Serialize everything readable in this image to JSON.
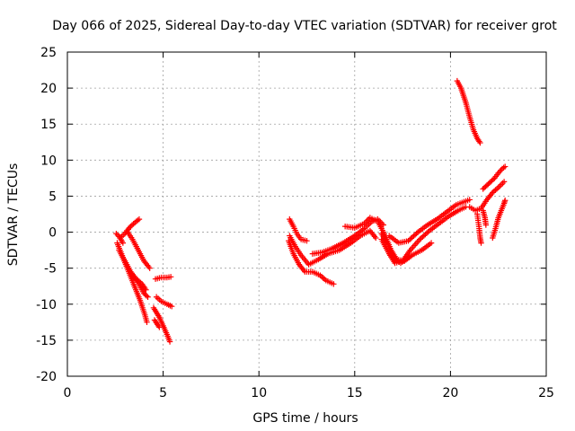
{
  "chart_data": {
    "type": "scatter",
    "title": "Day 066 of 2025, Sidereal Day-to-day VTEC variation (SDTVAR) for receiver grot",
    "xlabel": "GPS time / hours",
    "ylabel": "SDTVAR / TECUs",
    "xlim": [
      0,
      25
    ],
    "ylim": [
      -20,
      25
    ],
    "x_ticks": [
      0,
      5,
      10,
      15,
      20,
      25
    ],
    "y_ticks": [
      -20,
      -15,
      -10,
      -5,
      0,
      5,
      10,
      15,
      20,
      25
    ],
    "x_tick_labels": [
      "0",
      "5",
      "10",
      "15",
      "20",
      "25"
    ],
    "y_tick_labels": [
      "-20",
      "-15",
      "-10",
      "-5",
      "0",
      "5",
      "10",
      "15",
      "20",
      "25"
    ],
    "grid": true,
    "marker": "plus",
    "color": "#ff0000",
    "tracks": [
      [
        [
          2.55,
          -0.2
        ],
        [
          2.7,
          -0.6
        ],
        [
          2.9,
          -1.5
        ]
      ],
      [
        [
          2.6,
          -1.5
        ],
        [
          2.9,
          -3.5
        ],
        [
          3.2,
          -5.5
        ],
        [
          3.5,
          -7.5
        ],
        [
          3.8,
          -9.5
        ],
        [
          4.05,
          -11.5
        ],
        [
          4.15,
          -12.5
        ]
      ],
      [
        [
          2.7,
          -2.5
        ],
        [
          3.0,
          -4.0
        ],
        [
          3.3,
          -5.5
        ],
        [
          3.6,
          -6.5
        ],
        [
          3.9,
          -7.2
        ],
        [
          4.1,
          -8.0
        ]
      ],
      [
        [
          2.8,
          -3.0
        ],
        [
          3.1,
          -4.5
        ],
        [
          3.4,
          -6.0
        ],
        [
          3.7,
          -7.0
        ],
        [
          4.0,
          -8.5
        ],
        [
          4.2,
          -9.0
        ]
      ],
      [
        [
          2.75,
          -0.8
        ],
        [
          3.0,
          -0.2
        ],
        [
          3.3,
          0.8
        ],
        [
          3.6,
          1.5
        ],
        [
          3.75,
          1.8
        ]
      ],
      [
        [
          3.1,
          0.2
        ],
        [
          3.4,
          -1.0
        ],
        [
          3.7,
          -2.5
        ],
        [
          4.0,
          -4.0
        ],
        [
          4.3,
          -5.0
        ]
      ],
      [
        [
          4.6,
          -6.5
        ],
        [
          4.9,
          -6.3
        ],
        [
          5.2,
          -6.3
        ],
        [
          5.4,
          -6.2
        ]
      ],
      [
        [
          4.5,
          -10.5
        ],
        [
          4.8,
          -11.8
        ],
        [
          5.0,
          -13.0
        ],
        [
          5.2,
          -14.2
        ],
        [
          5.35,
          -15.2
        ]
      ],
      [
        [
          4.65,
          -9.0
        ],
        [
          4.9,
          -9.6
        ],
        [
          5.2,
          -10.0
        ],
        [
          5.45,
          -10.3
        ]
      ],
      [
        [
          4.55,
          -12.2
        ],
        [
          4.7,
          -12.8
        ],
        [
          4.8,
          -13.2
        ]
      ],
      [
        [
          11.6,
          1.8
        ],
        [
          11.8,
          0.8
        ],
        [
          12.0,
          -0.3
        ],
        [
          12.2,
          -1.0
        ],
        [
          12.5,
          -1.2
        ]
      ],
      [
        [
          11.55,
          -1.2
        ],
        [
          11.8,
          -3.0
        ],
        [
          12.1,
          -4.5
        ],
        [
          12.4,
          -5.5
        ],
        [
          12.8,
          -5.5
        ],
        [
          13.2,
          -6.0
        ],
        [
          13.5,
          -6.7
        ],
        [
          13.9,
          -7.2
        ]
      ],
      [
        [
          11.6,
          -0.5
        ],
        [
          11.9,
          -2.0
        ],
        [
          12.2,
          -3.2
        ],
        [
          12.6,
          -4.5
        ],
        [
          13.1,
          -3.8
        ],
        [
          13.6,
          -3.0
        ],
        [
          14.2,
          -2.5
        ],
        [
          14.8,
          -1.5
        ],
        [
          15.3,
          -0.5
        ],
        [
          15.8,
          0.2
        ],
        [
          16.1,
          -0.8
        ]
      ],
      [
        [
          12.8,
          -3.0
        ],
        [
          13.3,
          -2.8
        ],
        [
          13.8,
          -2.3
        ],
        [
          14.4,
          -1.5
        ],
        [
          15.0,
          -0.5
        ],
        [
          15.5,
          0.5
        ],
        [
          15.9,
          1.5
        ],
        [
          16.2,
          1.8
        ],
        [
          16.5,
          1.0
        ]
      ],
      [
        [
          14.5,
          0.8
        ],
        [
          15.0,
          0.6
        ],
        [
          15.5,
          1.2
        ],
        [
          15.8,
          2.0
        ],
        [
          16.2,
          1.5
        ],
        [
          16.6,
          -0.5
        ],
        [
          16.9,
          -2.5
        ],
        [
          17.2,
          -3.8
        ],
        [
          17.6,
          -4.0
        ],
        [
          18.0,
          -3.2
        ],
        [
          18.5,
          -2.5
        ],
        [
          19.0,
          -1.5
        ]
      ],
      [
        [
          16.4,
          -1.0
        ],
        [
          16.8,
          -3.0
        ],
        [
          17.1,
          -4.3
        ],
        [
          17.5,
          -4.0
        ],
        [
          17.9,
          -2.5
        ],
        [
          18.4,
          -1.0
        ],
        [
          18.9,
          0.2
        ],
        [
          19.4,
          1.2
        ],
        [
          19.9,
          2.2
        ],
        [
          20.4,
          3.0
        ],
        [
          20.8,
          3.5
        ]
      ],
      [
        [
          16.8,
          -0.5
        ],
        [
          17.3,
          -1.5
        ],
        [
          17.8,
          -1.2
        ],
        [
          18.3,
          0.0
        ],
        [
          18.8,
          1.0
        ],
        [
          19.3,
          1.8
        ],
        [
          19.8,
          2.8
        ],
        [
          20.3,
          3.8
        ],
        [
          20.7,
          4.2
        ],
        [
          21.0,
          4.5
        ]
      ],
      [
        [
          16.4,
          -0.2
        ],
        [
          16.7,
          -1.5
        ],
        [
          17.0,
          -3.5
        ],
        [
          17.4,
          -4.3
        ],
        [
          17.8,
          -3.5
        ]
      ],
      [
        [
          20.35,
          21.0
        ],
        [
          20.55,
          20.0
        ],
        [
          20.8,
          18.0
        ],
        [
          21.0,
          16.0
        ],
        [
          21.2,
          14.2
        ],
        [
          21.4,
          13.0
        ],
        [
          21.55,
          12.4
        ]
      ],
      [
        [
          21.7,
          6.0
        ],
        [
          21.9,
          6.5
        ],
        [
          22.1,
          7.0
        ],
        [
          22.3,
          7.5
        ],
        [
          22.5,
          8.2
        ],
        [
          22.7,
          8.8
        ],
        [
          22.85,
          9.1
        ]
      ],
      [
        [
          21.0,
          3.5
        ],
        [
          21.3,
          3.0
        ],
        [
          21.6,
          3.3
        ],
        [
          21.9,
          4.5
        ],
        [
          22.2,
          5.5
        ],
        [
          22.5,
          6.2
        ],
        [
          22.8,
          7.0
        ]
      ],
      [
        [
          21.4,
          2.5
        ],
        [
          21.5,
          0.5
        ],
        [
          21.55,
          -0.8
        ],
        [
          21.6,
          -1.5
        ]
      ],
      [
        [
          21.7,
          3.0
        ],
        [
          21.8,
          2.0
        ],
        [
          21.85,
          1.0
        ]
      ],
      [
        [
          22.2,
          -0.8
        ],
        [
          22.35,
          0.5
        ],
        [
          22.5,
          2.0
        ],
        [
          22.65,
          3.0
        ],
        [
          22.8,
          4.0
        ],
        [
          22.85,
          4.4
        ]
      ]
    ]
  }
}
